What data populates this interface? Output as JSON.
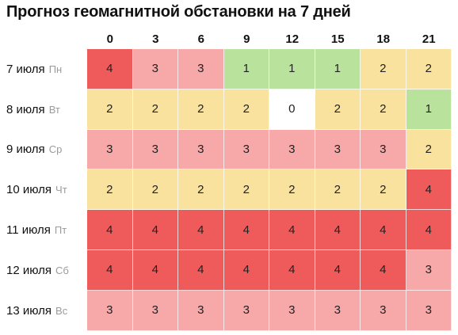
{
  "title": "Прогноз геомагнитной обстановки на 7 дней",
  "hours": [
    "0",
    "3",
    "6",
    "9",
    "12",
    "15",
    "18",
    "21"
  ],
  "colors": {
    "0": "#ffffff",
    "1": "#b9e29c",
    "2": "#f8e29e",
    "3": "#f7a8a8",
    "4": "#ef5b5b"
  },
  "days": [
    {
      "date": "7 июля",
      "dow": "Пн",
      "values": [
        "4",
        "3",
        "3",
        "1",
        "1",
        "1",
        "2",
        "2"
      ]
    },
    {
      "date": "8 июля",
      "dow": "Вт",
      "values": [
        "2",
        "2",
        "2",
        "2",
        "0",
        "2",
        "2",
        "1"
      ]
    },
    {
      "date": "9 июля",
      "dow": "Ср",
      "values": [
        "3",
        "3",
        "3",
        "3",
        "3",
        "3",
        "3",
        "2"
      ]
    },
    {
      "date": "10 июля",
      "dow": "Чт",
      "values": [
        "2",
        "2",
        "2",
        "2",
        "2",
        "2",
        "2",
        "4"
      ]
    },
    {
      "date": "11 июля",
      "dow": "Пт",
      "values": [
        "4",
        "4",
        "4",
        "4",
        "4",
        "4",
        "4",
        "4"
      ]
    },
    {
      "date": "12 июля",
      "dow": "Сб",
      "values": [
        "4",
        "4",
        "4",
        "4",
        "4",
        "4",
        "4",
        "3"
      ]
    },
    {
      "date": "13 июля",
      "dow": "Вс",
      "values": [
        "3",
        "3",
        "3",
        "3",
        "3",
        "3",
        "3",
        "3"
      ]
    }
  ]
}
